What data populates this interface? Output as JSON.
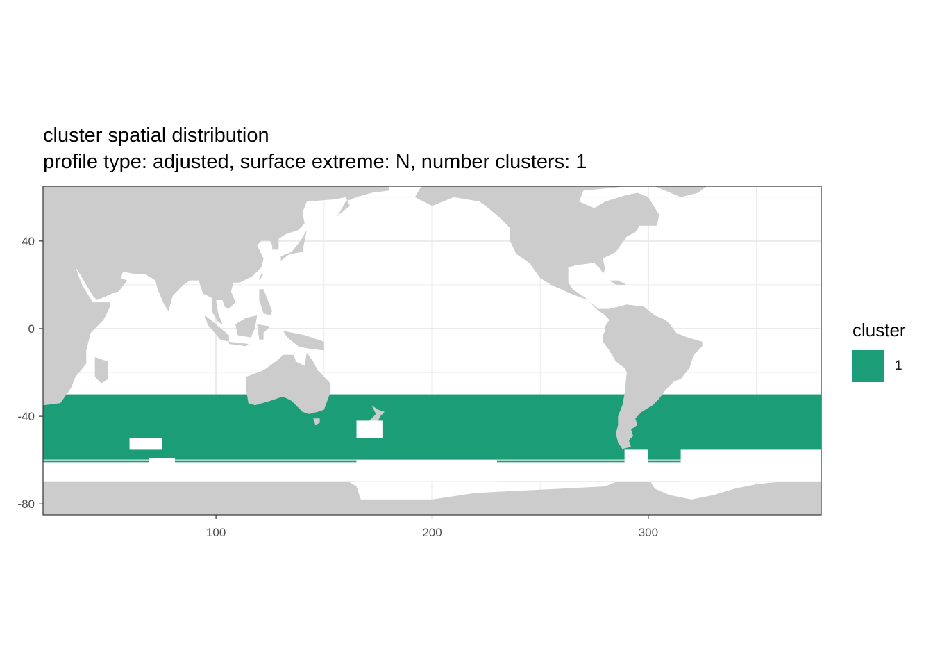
{
  "title": {
    "line1": "cluster spatial distribution",
    "line2": "profile type: adjusted, surface extreme: N, number clusters: 1"
  },
  "chart_data": {
    "type": "heatmap",
    "map": true,
    "background_land_color": "#cccccc",
    "panel_background": "#ffffff",
    "grid": true,
    "grid_color": "#ebebeb",
    "xlim": [
      20,
      380
    ],
    "ylim": [
      -85,
      65
    ],
    "x_ticks": [
      100,
      200,
      300
    ],
    "y_ticks": [
      40,
      0,
      -40,
      -80
    ],
    "x_tick_labels": [
      "100",
      "200",
      "300"
    ],
    "y_tick_labels": [
      "40",
      "0",
      "-40",
      "-80"
    ],
    "xlabel": "",
    "ylabel": "",
    "cluster_region": {
      "cluster": "1",
      "lat_north": -30,
      "lat_south": -70,
      "lon_west": 20,
      "lon_east": 380,
      "color": "#1b9e77"
    },
    "legend": {
      "title": "cluster",
      "placement": "right",
      "entries": [
        {
          "label": "1",
          "color": "#1b9e77"
        }
      ]
    }
  }
}
